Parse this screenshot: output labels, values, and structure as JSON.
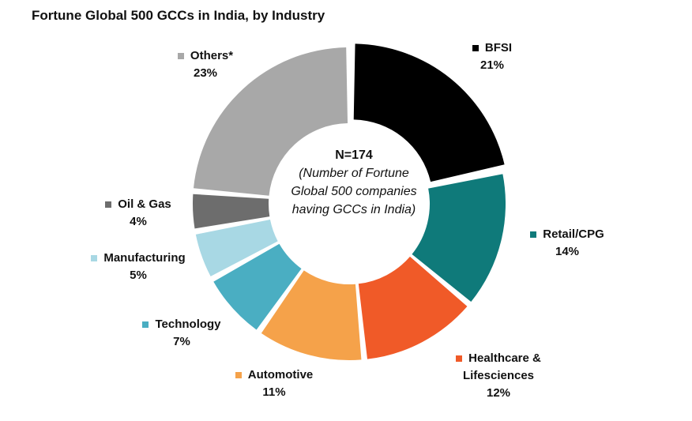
{
  "chart_data": {
    "type": "pie",
    "title": "Fortune Global 500 GCCs in India, by Industry",
    "center": {
      "n_label": "N=174",
      "note": "(Number of Fortune Global 500 companies having GCCs in India)"
    },
    "slices": [
      {
        "label": "BFSI",
        "value": 21,
        "value_label": "21%",
        "color": "#000000"
      },
      {
        "label": "Retail/CPG",
        "value": 14,
        "value_label": "14%",
        "color": "#0f7a7a"
      },
      {
        "label": "Healthcare & Lifesciences",
        "value": 12,
        "value_label": "12%",
        "color": "#f05a28"
      },
      {
        "label": "Automotive",
        "value": 11,
        "value_label": "11%",
        "color": "#f5a24a"
      },
      {
        "label": "Technology",
        "value": 7,
        "value_label": "7%",
        "color": "#4aaec2"
      },
      {
        "label": "Manufacturing",
        "value": 5,
        "value_label": "5%",
        "color": "#a8d8e4"
      },
      {
        "label": "Oil & Gas",
        "value": 4,
        "value_label": "4%",
        "color": "#6d6d6d"
      },
      {
        "label": "Others*",
        "value": 23,
        "value_label": "23%",
        "color": "#a8a8a8"
      }
    ]
  }
}
